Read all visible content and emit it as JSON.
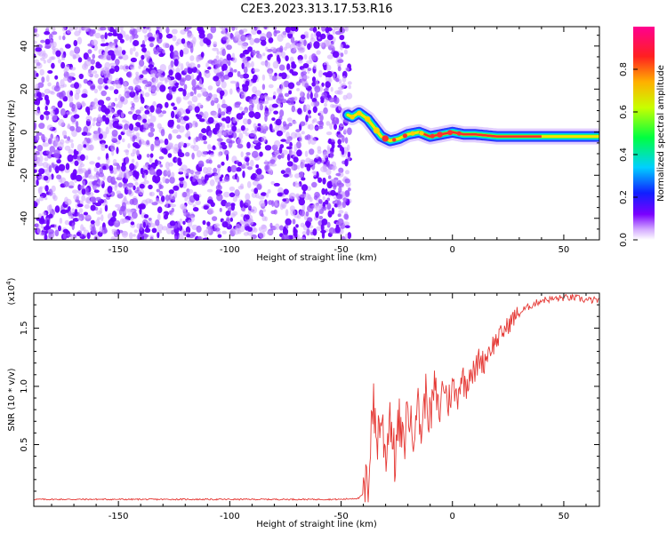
{
  "title": "C2E3.2023.313.17.53.R16",
  "colors": {
    "speckle": "#6a00ff",
    "signal_core": "#ff2a2a",
    "snr_line": "#e53935"
  },
  "chart_data": [
    {
      "type": "heatmap",
      "name": "spectrogram",
      "xlabel": "Height of straight line (km)",
      "ylabel": "Frequency (Hz)",
      "xlim": [
        -188,
        66
      ],
      "ylim": [
        -50,
        49
      ],
      "xticks": [
        -150,
        -100,
        -50,
        0,
        50
      ],
      "yticks": [
        -40,
        -20,
        0,
        20,
        40
      ],
      "noise_region_x": [
        -188,
        -46
      ],
      "signal_track": {
        "x": [
          -47,
          -45,
          -42,
          -38,
          -35,
          -32,
          -28,
          -24,
          -20,
          -15,
          -10,
          -5,
          0,
          5,
          10,
          20,
          30,
          40,
          50,
          60,
          66
        ],
        "freq": [
          8,
          7,
          9,
          6,
          2,
          -2,
          -4,
          -3,
          -1,
          0,
          -2,
          -1,
          0,
          -1,
          -1,
          -2,
          -2,
          -2,
          -2,
          -2,
          -2
        ]
      },
      "colorbar": {
        "label": "Normalized spectral amplitude",
        "range": [
          0.0,
          1.0
        ],
        "ticks": [
          "0.0",
          "0.2",
          "0.4",
          "0.6",
          "0.8"
        ],
        "colormap": "rainbow"
      },
      "grid": false
    },
    {
      "type": "line",
      "name": "snr",
      "xlabel": "Height of straight line (km)",
      "ylabel": "SNR (10 * v/v)",
      "yscale_note": "(x10",
      "yscale_exp": "4",
      "xlim": [
        -188,
        66
      ],
      "ylim": [
        -0.03,
        1.8
      ],
      "xticks": [
        -150,
        -100,
        -50,
        0,
        50
      ],
      "yticks": [
        0.5,
        1.0,
        1.5
      ],
      "ytick_labels": [
        "0.5",
        "1.0",
        "1.5"
      ],
      "series": [
        {
          "x": [
            -188,
            -100,
            -50,
            -42,
            -40,
            -38,
            -37,
            -36,
            -34,
            -32,
            -30,
            -28,
            -26,
            -24,
            -22,
            -20,
            -18,
            -16,
            -14,
            -12,
            -10,
            -8,
            -6,
            -4,
            -2,
            0,
            2,
            4,
            6,
            8,
            10,
            12,
            14,
            16,
            18,
            20,
            22,
            24,
            26,
            28,
            30,
            32,
            34,
            36,
            38,
            40,
            45,
            50,
            55,
            60,
            66
          ],
          "values": [
            0.03,
            0.03,
            0.03,
            0.04,
            0.08,
            0.12,
            0.5,
            0.9,
            0.55,
            0.75,
            0.4,
            0.8,
            0.35,
            0.7,
            0.45,
            0.85,
            0.55,
            0.9,
            0.6,
            0.95,
            0.7,
            1.0,
            0.75,
            1.05,
            0.85,
            1.0,
            0.9,
            1.1,
            1.0,
            1.15,
            1.1,
            1.25,
            1.2,
            1.3,
            1.35,
            1.4,
            1.45,
            1.5,
            1.55,
            1.6,
            1.62,
            1.66,
            1.68,
            1.7,
            1.72,
            1.74,
            1.75,
            1.76,
            1.76,
            1.74,
            1.74
          ]
        }
      ],
      "grid": false
    }
  ]
}
